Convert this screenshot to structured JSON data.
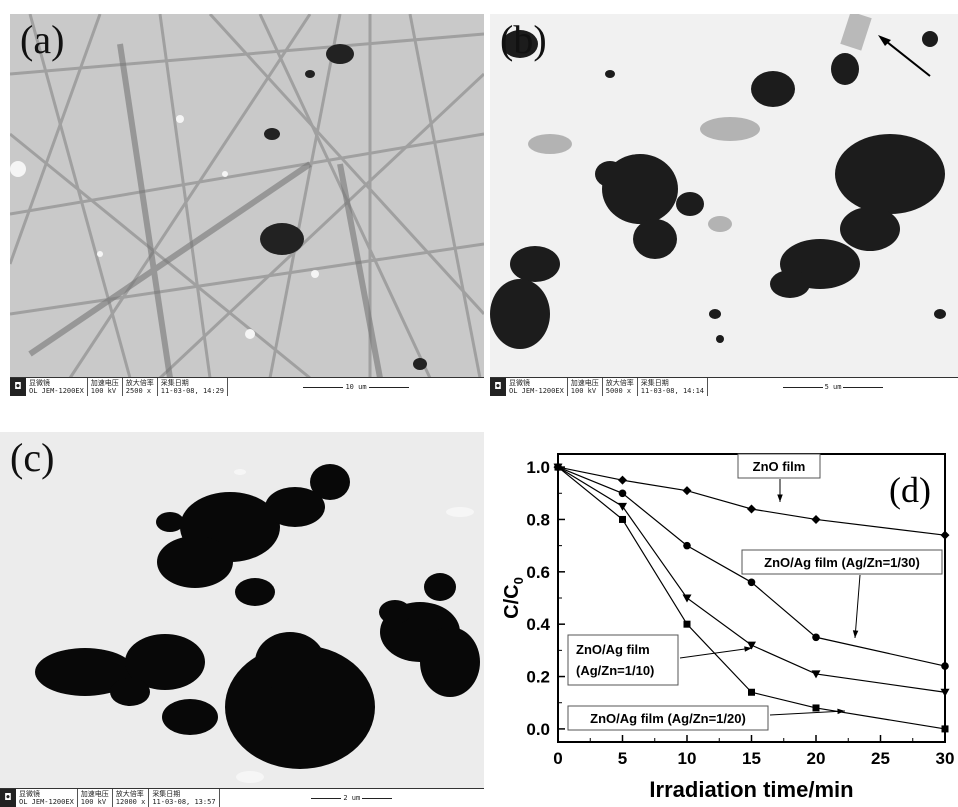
{
  "panels": [
    {
      "label": "(a)",
      "meta": {
        "col1_head": "显微镜",
        "col1_val": "OL JEM-1200EX",
        "col2_head": "加速电压",
        "col2_val": "100 kV",
        "col3_head": "放大倍率",
        "col3_val": "2500 x",
        "col4_head": "采集日期",
        "col4_val": "11-03-08, 14:29",
        "scale": "10 um"
      }
    },
    {
      "label": "(b)",
      "meta": {
        "col1_head": "显微镜",
        "col1_val": "OL JEM-1200EX",
        "col2_head": "加速电压",
        "col2_val": "100 kV",
        "col3_head": "放大倍率",
        "col3_val": "5000 x",
        "col4_head": "采集日期",
        "col4_val": "11-03-08, 14:14",
        "scale": "5 um"
      }
    },
    {
      "label": "(c)",
      "meta": {
        "col1_head": "显微镜",
        "col1_val": "OL JEM-1200EX",
        "col2_head": "加速电压",
        "col2_val": "100 kV",
        "col3_head": "放大倍率",
        "col3_val": "12000 x",
        "col4_head": "采集日期",
        "col4_val": "11-03-08, 13:57",
        "scale": "2 um"
      }
    }
  ],
  "chart_data": {
    "type": "line",
    "panel_label": "(d)",
    "xlabel": "Irradiation time/min",
    "ylabel": "C/C",
    "ylabel_sub": "0",
    "xlim": [
      0,
      30
    ],
    "ylim": [
      -0.05,
      1.05
    ],
    "xticks": [
      0,
      5,
      10,
      15,
      20,
      25,
      30
    ],
    "yticks": [
      0.0,
      0.2,
      0.4,
      0.6,
      0.8,
      1.0
    ],
    "series": [
      {
        "name": "ZnO film",
        "marker": "diamond",
        "x": [
          0,
          5,
          10,
          15,
          20,
          30
        ],
        "y": [
          1.0,
          0.95,
          0.91,
          0.84,
          0.8,
          0.74
        ]
      },
      {
        "name": "ZnO/Ag film (Ag/Zn=1/30)",
        "marker": "circle",
        "x": [
          0,
          5,
          10,
          15,
          20,
          30
        ],
        "y": [
          1.0,
          0.9,
          0.7,
          0.56,
          0.35,
          0.24
        ]
      },
      {
        "name": "ZnO/Ag film (Ag/Zn=1/10)",
        "marker": "triangle",
        "x": [
          0,
          5,
          10,
          15,
          20,
          30
        ],
        "y": [
          1.0,
          0.85,
          0.5,
          0.32,
          0.21,
          0.14
        ]
      },
      {
        "name": "ZnO/Ag film (Ag/Zn=1/20)",
        "marker": "square",
        "x": [
          0,
          5,
          10,
          15,
          20,
          30
        ],
        "y": [
          1.0,
          0.8,
          0.4,
          0.14,
          0.08,
          0.0
        ]
      }
    ],
    "annotations": [
      {
        "line1": "ZnO film",
        "line2": ""
      },
      {
        "line1": "ZnO/Ag film (Ag/Zn=1/30)",
        "line2": ""
      },
      {
        "line1": "ZnO/Ag film",
        "line2": "(Ag/Zn=1/10)"
      },
      {
        "line1": "ZnO/Ag film (Ag/Zn=1/20)",
        "line2": ""
      }
    ]
  }
}
